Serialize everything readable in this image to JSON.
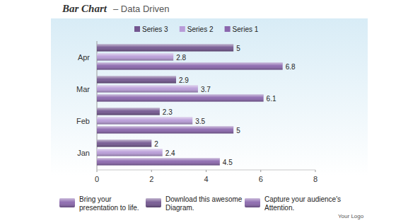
{
  "chart_data": {
    "type": "bar",
    "orientation": "horizontal",
    "title": "Bar Chart",
    "subtitle": "– Data Driven",
    "categories": [
      "Jan",
      "Feb",
      "Mar",
      "Apr"
    ],
    "series": [
      {
        "name": "Series 1",
        "color": "#8a66ad",
        "values": [
          4.5,
          5,
          6.1,
          6.8
        ]
      },
      {
        "name": "Series 2",
        "color": "#b89cd8",
        "values": [
          2.4,
          3.5,
          3.7,
          2.8
        ]
      },
      {
        "name": "Series 3",
        "color": "#735690",
        "values": [
          2,
          2.3,
          2.9,
          5
        ]
      }
    ],
    "xlim": [
      0,
      8
    ],
    "xticks": [
      0,
      2,
      4,
      6,
      8
    ],
    "grid": false,
    "legend": "top",
    "data_labels": true
  },
  "footer": {
    "items": [
      "Bring your presentation to life.",
      "Download this awesome Diagram.",
      "Capture your audience's Attention."
    ],
    "logo": "Your Logo"
  }
}
